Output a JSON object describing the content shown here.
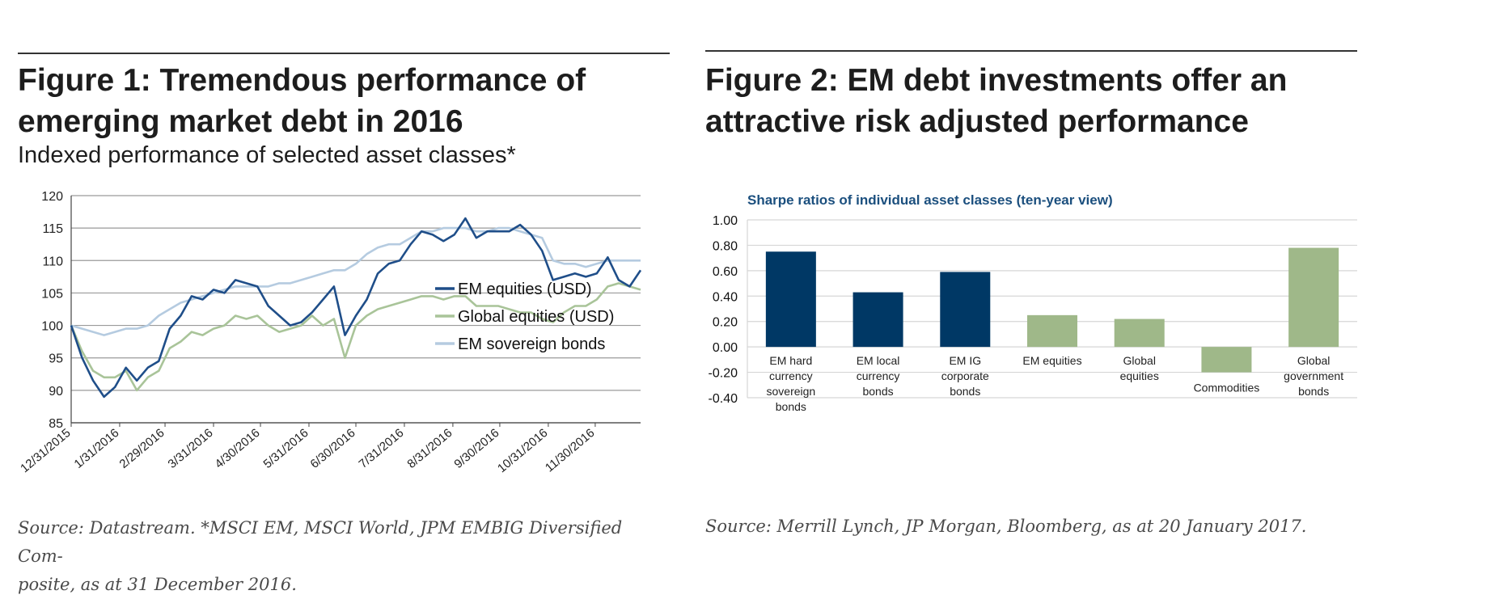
{
  "figure1": {
    "title_line1": "Figure 1: Tremendous performance of",
    "title_line2": "emerging market debt in 2016",
    "subtitle": "Indexed performance of selected asset classes*",
    "source_line1": "Source: Datastream. *MSCI EM, MSCI World, JPM EMBIG Diversified Com-",
    "source_line2": "posite, as at 31 December 2016."
  },
  "figure2": {
    "title_line1": "Figure 2: EM debt investments offer an",
    "title_line2": "attractive risk adjusted performance",
    "source": "Source: Merrill Lynch, JP Morgan, Bloomberg, as at 20 January 2017."
  },
  "chart_data": [
    {
      "type": "line",
      "x_ticks": [
        "12/31/2015",
        "1/31/2016",
        "2/29/2016",
        "3/31/2016",
        "4/30/2016",
        "5/31/2016",
        "6/30/2016",
        "7/31/2016",
        "8/31/2016",
        "9/30/2016",
        "10/31/2016",
        "11/30/2016"
      ],
      "y_ticks": [
        85,
        90,
        95,
        100,
        105,
        110,
        115,
        120
      ],
      "ylim": [
        85,
        120
      ],
      "grid": true,
      "legend_position": "bottom-right",
      "x": [
        "12/31/2015",
        "1/7/2016",
        "1/14/2016",
        "1/21/2016",
        "1/28/2016",
        "2/4/2016",
        "2/11/2016",
        "2/18/2016",
        "2/25/2016",
        "3/3/2016",
        "3/10/2016",
        "3/17/2016",
        "3/24/2016",
        "3/31/2016",
        "4/7/2016",
        "4/14/2016",
        "4/21/2016",
        "4/28/2016",
        "5/5/2016",
        "5/12/2016",
        "5/19/2016",
        "5/26/2016",
        "6/2/2016",
        "6/9/2016",
        "6/16/2016",
        "6/23/2016",
        "6/30/2016",
        "7/7/2016",
        "7/14/2016",
        "7/21/2016",
        "7/28/2016",
        "8/4/2016",
        "8/11/2016",
        "8/18/2016",
        "8/25/2016",
        "9/1/2016",
        "9/8/2016",
        "9/15/2016",
        "9/22/2016",
        "9/29/2016",
        "10/6/2016",
        "10/13/2016",
        "10/20/2016",
        "10/27/2016",
        "11/3/2016",
        "11/10/2016",
        "11/17/2016",
        "11/24/2016",
        "12/1/2016",
        "12/8/2016",
        "12/15/2016",
        "12/22/2016",
        "12/29/2016"
      ],
      "series": [
        {
          "name": "EM equities (USD)",
          "color": "#1f4e89",
          "values": [
            100,
            95,
            91.5,
            89,
            90.5,
            93.5,
            91.5,
            93.5,
            94.5,
            99.5,
            101.5,
            104.5,
            104,
            105.5,
            105,
            107,
            106.5,
            106,
            103,
            101.5,
            100,
            100.5,
            102,
            104,
            106,
            98.5,
            101.5,
            104,
            108,
            109.5,
            110,
            112.5,
            114.5,
            114,
            113,
            114,
            116.5,
            113.5,
            114.5,
            114.5,
            114.5,
            115.5,
            114,
            111.5,
            107,
            107.5,
            108,
            107.5,
            108,
            110.5,
            107,
            106,
            108.5
          ]
        },
        {
          "name": "Global equities (USD)",
          "color": "#a9c499",
          "values": [
            100,
            96,
            93,
            92,
            92,
            93,
            90,
            92,
            93,
            96.5,
            97.5,
            99,
            98.5,
            99.5,
            100,
            101.5,
            101,
            101.5,
            100,
            99,
            99.5,
            100,
            101.5,
            100,
            101,
            95,
            100,
            101.5,
            102.5,
            103,
            103.5,
            104,
            104.5,
            104.5,
            104,
            104.5,
            104.5,
            103,
            103,
            103,
            102.5,
            102,
            102,
            101,
            100.5,
            102,
            103,
            103,
            104,
            106,
            106.5,
            106,
            105.5
          ]
        },
        {
          "name": "EM sovereign bonds",
          "color": "#b5cbe0",
          "values": [
            100,
            99.5,
            99,
            98.5,
            99,
            99.5,
            99.5,
            100,
            101.5,
            102.5,
            103.5,
            104,
            104.5,
            105,
            105.5,
            106,
            106,
            106,
            106,
            106.5,
            106.5,
            107,
            107.5,
            108,
            108.5,
            108.5,
            109.5,
            111,
            112,
            112.5,
            112.5,
            113.5,
            114.5,
            114.5,
            115,
            115,
            115,
            114.5,
            114.5,
            115,
            115,
            114.5,
            114,
            113.5,
            110,
            109.5,
            109.5,
            109,
            109.5,
            110,
            110,
            110,
            110
          ]
        }
      ]
    },
    {
      "type": "bar",
      "title": "Sharpe ratios of individual asset classes (ten-year view)",
      "categories": [
        [
          "EM hard",
          "currency",
          "sovereign",
          "bonds"
        ],
        [
          "EM local",
          "currency",
          "bonds"
        ],
        [
          "EM IG",
          "corporate",
          "bonds"
        ],
        [
          "EM equities"
        ],
        [
          "Global",
          "equities"
        ],
        [
          "Commodities"
        ],
        [
          "Global",
          "government",
          "bonds"
        ]
      ],
      "values": [
        0.75,
        0.43,
        0.59,
        0.25,
        0.22,
        -0.2,
        0.78
      ],
      "colors": [
        "#003865",
        "#003865",
        "#003865",
        "#9fb889",
        "#9fb889",
        "#9fb889",
        "#9fb889"
      ],
      "y_ticks": [
        "1.00",
        "0.80",
        "0.60",
        "0.40",
        "0.20",
        "0.00",
        "-0.20",
        "-0.40"
      ],
      "ylim": [
        -0.4,
        1.0
      ],
      "grid": true
    }
  ]
}
